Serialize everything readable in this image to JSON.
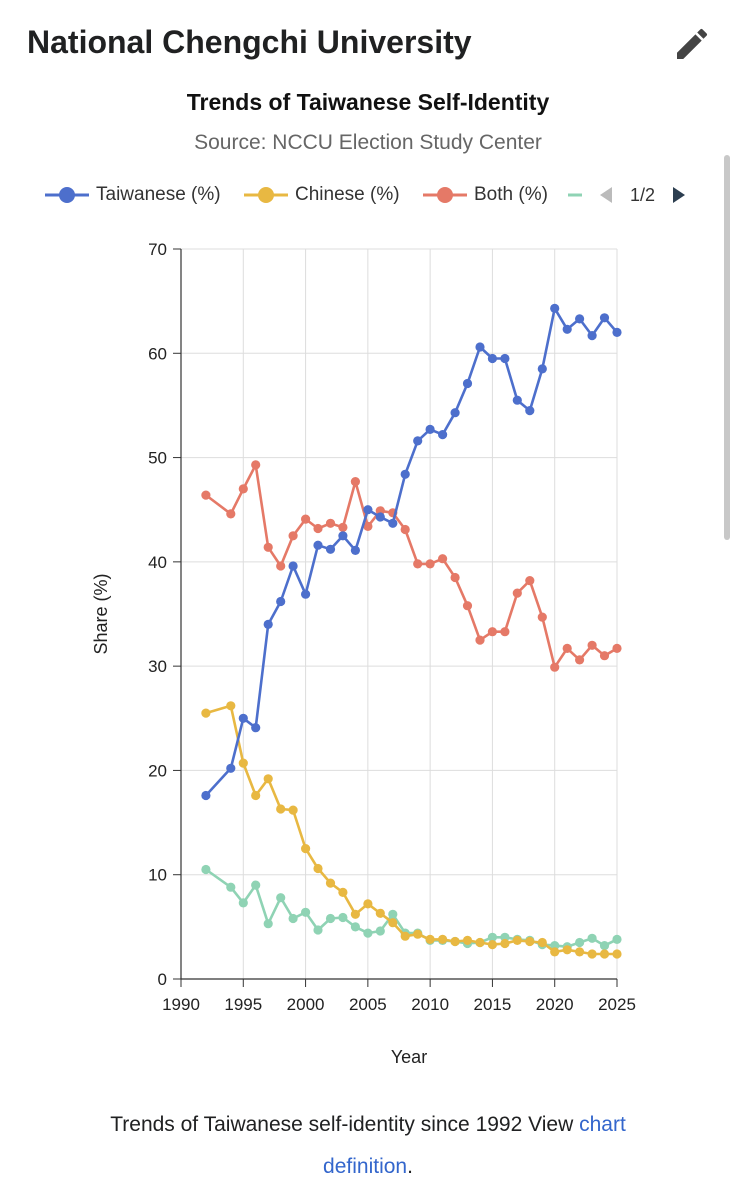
{
  "header": {
    "title": "National Chengchi University",
    "edit_icon": "pencil-icon"
  },
  "chart_data": {
    "type": "line",
    "title": "Trends of Taiwanese Self-Identity",
    "subtitle": "Source: NCCU Election Study Center",
    "xlabel": "Year",
    "ylabel": "Share (%)",
    "xlim": [
      1990,
      2025
    ],
    "ylim": [
      0,
      70
    ],
    "x_ticks": [
      1990,
      1995,
      2000,
      2005,
      2010,
      2015,
      2020,
      2025
    ],
    "y_ticks": [
      0,
      10,
      20,
      30,
      40,
      50,
      60,
      70
    ],
    "grid": true,
    "legend_position": "top",
    "legend_page": "1/2",
    "series": [
      {
        "name": "Taiwanese (%)",
        "color": "#4d6fcc",
        "points": [
          [
            1992,
            17.6
          ],
          [
            1994,
            20.2
          ],
          [
            1995,
            25.0
          ],
          [
            1996,
            24.1
          ],
          [
            1997,
            34.0
          ],
          [
            1998,
            36.2
          ],
          [
            1999,
            39.6
          ],
          [
            2000,
            36.9
          ],
          [
            2001,
            41.6
          ],
          [
            2002,
            41.2
          ],
          [
            2003,
            42.5
          ],
          [
            2004,
            41.1
          ],
          [
            2005,
            45.0
          ],
          [
            2006,
            44.3
          ],
          [
            2007,
            43.7
          ],
          [
            2008,
            48.4
          ],
          [
            2009,
            51.6
          ],
          [
            2010,
            52.7
          ],
          [
            2011,
            52.2
          ],
          [
            2012,
            54.3
          ],
          [
            2013,
            57.1
          ],
          [
            2014,
            60.6
          ],
          [
            2015,
            59.5
          ],
          [
            2016,
            59.5
          ],
          [
            2017,
            55.5
          ],
          [
            2018,
            54.5
          ],
          [
            2019,
            58.5
          ],
          [
            2020,
            64.3
          ],
          [
            2021,
            62.3
          ],
          [
            2022,
            63.3
          ],
          [
            2023,
            61.7
          ],
          [
            2024,
            63.4
          ],
          [
            2025,
            62.0
          ]
        ]
      },
      {
        "name": "Chinese (%)",
        "color": "#e8b842",
        "points": [
          [
            1992,
            25.5
          ],
          [
            1994,
            26.2
          ],
          [
            1995,
            20.7
          ],
          [
            1996,
            17.6
          ],
          [
            1997,
            19.2
          ],
          [
            1998,
            16.3
          ],
          [
            1999,
            16.2
          ],
          [
            2000,
            12.5
          ],
          [
            2001,
            10.6
          ],
          [
            2002,
            9.2
          ],
          [
            2003,
            8.3
          ],
          [
            2004,
            6.2
          ],
          [
            2005,
            7.2
          ],
          [
            2006,
            6.3
          ],
          [
            2007,
            5.4
          ],
          [
            2008,
            4.1
          ],
          [
            2009,
            4.3
          ],
          [
            2010,
            3.8
          ],
          [
            2011,
            3.8
          ],
          [
            2012,
            3.6
          ],
          [
            2013,
            3.7
          ],
          [
            2014,
            3.5
          ],
          [
            2015,
            3.3
          ],
          [
            2016,
            3.4
          ],
          [
            2017,
            3.7
          ],
          [
            2018,
            3.6
          ],
          [
            2019,
            3.5
          ],
          [
            2020,
            2.6
          ],
          [
            2021,
            2.8
          ],
          [
            2022,
            2.6
          ],
          [
            2023,
            2.4
          ],
          [
            2024,
            2.4
          ],
          [
            2025,
            2.4
          ]
        ]
      },
      {
        "name": "Both (%)",
        "color": "#e57967",
        "points": [
          [
            1992,
            46.4
          ],
          [
            1994,
            44.6
          ],
          [
            1995,
            47.0
          ],
          [
            1996,
            49.3
          ],
          [
            1997,
            41.4
          ],
          [
            1998,
            39.6
          ],
          [
            1999,
            42.5
          ],
          [
            2000,
            44.1
          ],
          [
            2001,
            43.2
          ],
          [
            2002,
            43.7
          ],
          [
            2003,
            43.3
          ],
          [
            2004,
            47.7
          ],
          [
            2005,
            43.4
          ],
          [
            2006,
            44.9
          ],
          [
            2007,
            44.7
          ],
          [
            2008,
            43.1
          ],
          [
            2009,
            39.8
          ],
          [
            2010,
            39.8
          ],
          [
            2011,
            40.3
          ],
          [
            2012,
            38.5
          ],
          [
            2013,
            35.8
          ],
          [
            2014,
            32.5
          ],
          [
            2015,
            33.3
          ],
          [
            2016,
            33.3
          ],
          [
            2017,
            37.0
          ],
          [
            2018,
            38.2
          ],
          [
            2019,
            34.7
          ],
          [
            2020,
            29.9
          ],
          [
            2021,
            31.7
          ],
          [
            2022,
            30.6
          ],
          [
            2023,
            32.0
          ],
          [
            2024,
            31.0
          ],
          [
            2025,
            31.7
          ]
        ]
      },
      {
        "name": "",
        "color": "#8fd3b4",
        "points": [
          [
            1992,
            10.5
          ],
          [
            1994,
            8.8
          ],
          [
            1995,
            7.3
          ],
          [
            1996,
            9.0
          ],
          [
            1997,
            5.3
          ],
          [
            1998,
            7.8
          ],
          [
            1999,
            5.8
          ],
          [
            2000,
            6.4
          ],
          [
            2001,
            4.7
          ],
          [
            2002,
            5.8
          ],
          [
            2003,
            5.9
          ],
          [
            2004,
            5.0
          ],
          [
            2005,
            4.4
          ],
          [
            2006,
            4.6
          ],
          [
            2007,
            6.2
          ],
          [
            2008,
            4.4
          ],
          [
            2009,
            4.4
          ],
          [
            2010,
            3.7
          ],
          [
            2011,
            3.7
          ],
          [
            2012,
            3.6
          ],
          [
            2013,
            3.4
          ],
          [
            2014,
            3.5
          ],
          [
            2015,
            4.0
          ],
          [
            2016,
            4.0
          ],
          [
            2017,
            3.8
          ],
          [
            2018,
            3.7
          ],
          [
            2019,
            3.3
          ],
          [
            2020,
            3.2
          ],
          [
            2021,
            3.1
          ],
          [
            2022,
            3.5
          ],
          [
            2023,
            3.9
          ],
          [
            2024,
            3.2
          ],
          [
            2025,
            3.8
          ]
        ]
      }
    ]
  },
  "caption": {
    "text": "Trends of Taiwanese self-identity since 1992 View ",
    "link1": "chart",
    "link2": "definition",
    "end": "."
  }
}
